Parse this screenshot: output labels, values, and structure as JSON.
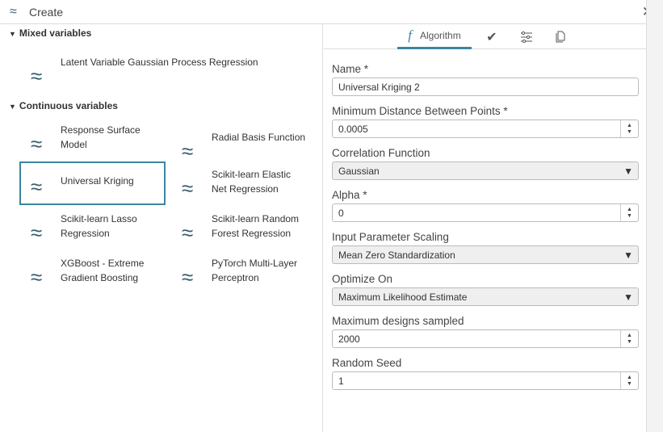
{
  "window": {
    "title": "Create",
    "icon": "approx-icon",
    "close_icon": "close-icon"
  },
  "left": {
    "sections": [
      {
        "title": "Mixed variables",
        "items": [
          {
            "label": "Latent Variable Gaussian Process Regression"
          }
        ]
      },
      {
        "title": "Continuous variables",
        "items": [
          {
            "label": "Response Surface Model"
          },
          {
            "label": "Radial Basis Function"
          },
          {
            "label": "Universal Kriging",
            "selected": true
          },
          {
            "label": "Scikit-learn Elastic Net Regression"
          },
          {
            "label": "Scikit-learn Lasso Regression"
          },
          {
            "label": "Scikit-learn Random Forest Regression"
          },
          {
            "label": "XGBoost - Extreme Gradient Boosting"
          },
          {
            "label": "PyTorch Multi-Layer Perceptron"
          }
        ]
      }
    ]
  },
  "tabs": {
    "algorithm": "Algorithm",
    "icons": [
      "function-icon",
      "check-icon",
      "sliders-icon",
      "copy-icon"
    ]
  },
  "form": {
    "name": {
      "label": "Name *",
      "value": "Universal Kriging 2"
    },
    "min_distance": {
      "label": "Minimum Distance Between Points *",
      "value": "0.0005"
    },
    "correlation": {
      "label": "Correlation Function",
      "value": "Gaussian"
    },
    "alpha": {
      "label": "Alpha *",
      "value": "0"
    },
    "scaling": {
      "label": "Input Parameter Scaling",
      "value": "Mean Zero Standardization"
    },
    "optimize": {
      "label": "Optimize On",
      "value": "Maximum Likelihood Estimate"
    },
    "max_designs": {
      "label": "Maximum designs sampled",
      "value": "2000"
    },
    "seed": {
      "label": "Random Seed",
      "value": "1"
    }
  },
  "colors": {
    "accent": "#3a86a0",
    "icon": "#3a5f6f"
  }
}
